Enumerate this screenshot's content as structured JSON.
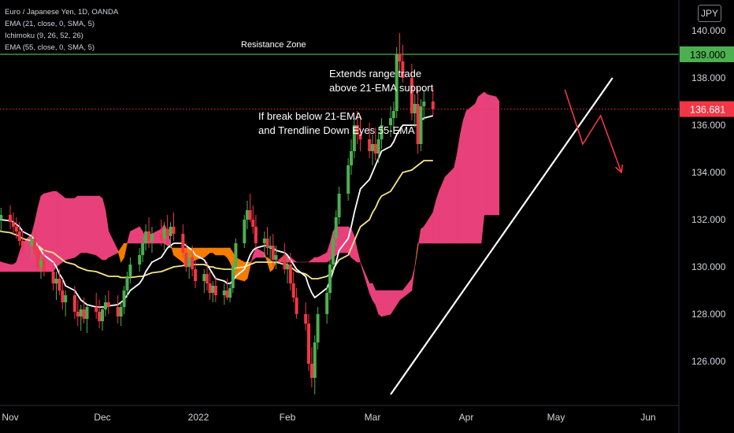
{
  "legend": {
    "title": "Euro / Japanese Yen, 1D, OANDA",
    "ema21": "EMA (21, close, 0, SMA, 5)",
    "ichimoku": "Ichimoku (9, 26, 52, 26)",
    "ema55": "EMA (55, close, 0, SMA, 5)"
  },
  "currency": "JPY",
  "colors": {
    "background": "#000000",
    "up": "#4caf50",
    "down": "#f23645",
    "cloud_bullish": "#e8407a",
    "cloud_bearish": "#f57c00",
    "ema21": "#ffffff",
    "ema55": "#f5e68c",
    "resistance": "#4caf50",
    "projection": "#f23645"
  },
  "chart_data": {
    "type": "candlestick",
    "y_axis": {
      "ticks": [
        "140.000",
        "138.000",
        "136.000",
        "134.000",
        "132.000",
        "130.000",
        "128.000",
        "126.000"
      ],
      "range": [
        124.4,
        141.3
      ]
    },
    "x_axis": {
      "ticks": [
        "Nov",
        "Dec",
        "2022",
        "Feb",
        "Mar",
        "Apr",
        "May",
        "Jun"
      ]
    },
    "resistance": {
      "value": 139.0,
      "label": "139.000",
      "zone_label": "Resistance Zone"
    },
    "last_price": {
      "value": 136.681,
      "label": "136.681"
    },
    "annotations": [
      {
        "text_line1": "Extends range trade",
        "text_line2": "above 21-EMA support"
      },
      {
        "text_line1": "If break below 21-EMA",
        "text_line2": "and Trendline  Down Eyes 55-EMA"
      }
    ],
    "trendline": {
      "from": {
        "date": "2022-03-07",
        "value": 124.6
      },
      "to": {
        "date": "2022-05-20",
        "value": 138.0
      }
    },
    "projection_path": [
      {
        "date": "2022-05-04",
        "value": 137.5
      },
      {
        "date": "2022-05-10",
        "value": 135.2
      },
      {
        "date": "2022-05-16",
        "value": 136.4
      },
      {
        "date": "2022-05-23",
        "value": 134.0
      }
    ],
    "candles_start": "2021-10-27",
    "candles": [
      [
        132.6,
        133.0,
        132.2,
        132.4
      ],
      [
        132.4,
        132.8,
        131.8,
        132.0
      ],
      [
        132.0,
        132.5,
        131.5,
        132.2
      ],
      [
        132.2,
        132.6,
        131.6,
        131.9
      ],
      [
        131.9,
        132.3,
        131.4,
        131.7
      ],
      [
        131.7,
        132.1,
        131.2,
        131.5
      ],
      [
        131.5,
        131.9,
        130.9,
        131.1
      ],
      [
        131.1,
        131.6,
        130.6,
        130.9
      ],
      [
        130.9,
        131.4,
        130.4,
        131.2
      ],
      [
        131.2,
        131.6,
        130.5,
        130.7
      ],
      [
        130.7,
        131.0,
        129.8,
        130.0
      ],
      [
        130.0,
        130.5,
        129.5,
        130.3
      ],
      [
        130.3,
        130.8,
        129.6,
        129.8
      ],
      [
        129.8,
        130.2,
        129.0,
        129.3
      ],
      [
        129.3,
        129.8,
        128.6,
        129.5
      ],
      [
        129.5,
        129.9,
        128.8,
        129.0
      ],
      [
        129.0,
        129.5,
        128.2,
        128.5
      ],
      [
        128.5,
        129.0,
        127.9,
        128.8
      ],
      [
        128.8,
        129.2,
        127.8,
        128.1
      ],
      [
        128.1,
        128.6,
        127.5,
        127.9
      ],
      [
        127.9,
        128.4,
        127.3,
        128.2
      ],
      [
        128.2,
        128.7,
        127.6,
        127.8
      ],
      [
        127.8,
        128.4,
        127.2,
        128.3
      ],
      [
        128.3,
        128.9,
        127.8,
        128.1
      ],
      [
        128.1,
        128.6,
        127.4,
        127.7
      ],
      [
        127.7,
        128.3,
        127.3,
        128.2
      ],
      [
        128.2,
        128.8,
        127.9,
        128.5
      ],
      [
        128.5,
        129.0,
        128.0,
        128.3
      ],
      [
        128.3,
        128.8,
        127.6,
        127.9
      ],
      [
        127.9,
        128.5,
        127.5,
        128.3
      ],
      [
        128.3,
        129.2,
        128.0,
        129.0
      ],
      [
        129.0,
        129.8,
        128.7,
        129.6
      ],
      [
        129.6,
        130.4,
        129.3,
        130.1
      ],
      [
        130.1,
        130.8,
        129.8,
        130.5
      ],
      [
        130.5,
        131.3,
        130.2,
        131.0
      ],
      [
        131.0,
        131.8,
        130.7,
        131.5
      ],
      [
        131.5,
        132.1,
        130.8,
        131.1
      ],
      [
        131.1,
        131.7,
        130.6,
        131.4
      ],
      [
        131.4,
        132.0,
        130.9,
        131.2
      ],
      [
        131.2,
        131.9,
        130.7,
        131.6
      ],
      [
        131.6,
        132.2,
        131.0,
        131.3
      ],
      [
        131.3,
        131.9,
        130.8,
        131.7
      ],
      [
        131.7,
        132.3,
        131.1,
        131.4
      ],
      [
        131.4,
        131.8,
        130.4,
        130.6
      ],
      [
        130.6,
        131.0,
        129.8,
        130.0
      ],
      [
        130.0,
        130.6,
        129.5,
        130.4
      ],
      [
        130.4,
        130.9,
        129.6,
        129.9
      ],
      [
        129.9,
        130.3,
        129.1,
        129.4
      ],
      [
        129.4,
        129.9,
        128.9,
        129.7
      ],
      [
        129.7,
        130.2,
        129.0,
        129.3
      ],
      [
        129.3,
        129.8,
        128.6,
        128.9
      ],
      [
        128.9,
        129.4,
        128.5,
        129.2
      ],
      [
        129.2,
        129.6,
        128.5,
        128.8
      ],
      [
        128.8,
        129.3,
        128.4,
        129.0
      ],
      [
        129.0,
        129.5,
        128.6,
        128.7
      ],
      [
        128.7,
        129.3,
        128.5,
        129.1
      ],
      [
        129.1,
        130.2,
        128.9,
        130.0
      ],
      [
        130.0,
        131.2,
        129.8,
        131.0
      ],
      [
        131.0,
        132.2,
        130.8,
        132.0
      ],
      [
        132.0,
        132.8,
        131.6,
        132.4
      ],
      [
        132.4,
        133.1,
        131.9,
        132.0
      ],
      [
        132.0,
        132.6,
        131.4,
        131.7
      ],
      [
        131.7,
        132.2,
        130.8,
        131.0
      ],
      [
        131.0,
        131.5,
        130.4,
        131.2
      ],
      [
        131.2,
        131.7,
        130.5,
        130.8
      ],
      [
        130.8,
        131.3,
        130.2,
        130.9
      ],
      [
        130.9,
        131.4,
        130.0,
        130.3
      ],
      [
        130.3,
        130.9,
        129.9,
        130.5
      ],
      [
        130.5,
        131.0,
        129.7,
        129.9
      ],
      [
        129.9,
        130.4,
        129.3,
        130.1
      ],
      [
        130.1,
        130.6,
        129.0,
        129.3
      ],
      [
        129.3,
        129.8,
        128.5,
        128.7
      ],
      [
        128.7,
        129.1,
        127.8,
        128.0
      ],
      [
        128.0,
        128.5,
        127.3,
        127.6
      ],
      [
        127.6,
        128.0,
        125.6,
        125.9
      ],
      [
        125.9,
        126.6,
        124.9,
        125.3
      ],
      [
        125.3,
        127.1,
        124.6,
        126.8
      ],
      [
        126.8,
        128.3,
        126.5,
        128.0
      ],
      [
        128.0,
        129.2,
        127.6,
        128.9
      ],
      [
        128.9,
        130.4,
        128.6,
        130.1
      ],
      [
        130.1,
        131.5,
        129.8,
        131.2
      ],
      [
        131.2,
        132.4,
        130.9,
        132.1
      ],
      [
        132.1,
        133.4,
        131.8,
        133.1
      ],
      [
        133.1,
        134.6,
        132.8,
        134.3
      ],
      [
        134.3,
        135.4,
        133.9,
        134.9
      ],
      [
        134.9,
        136.3,
        134.6,
        136.0
      ],
      [
        136.0,
        136.6,
        135.2,
        135.6
      ],
      [
        135.6,
        136.4,
        134.9,
        135.4
      ],
      [
        135.4,
        136.1,
        134.6,
        134.9
      ],
      [
        134.9,
        135.6,
        134.3,
        135.2
      ],
      [
        135.2,
        135.9,
        134.5,
        134.8
      ],
      [
        134.8,
        135.7,
        134.4,
        135.4
      ],
      [
        135.4,
        136.3,
        135.0,
        136.0
      ],
      [
        136.0,
        136.8,
        135.5,
        136.3
      ],
      [
        136.3,
        137.0,
        135.8,
        136.6
      ],
      [
        136.6,
        139.3,
        136.3,
        139.0
      ],
      [
        139.0,
        139.9,
        138.2,
        138.7
      ],
      [
        138.7,
        139.4,
        137.8,
        138.0
      ],
      [
        138.0,
        138.6,
        136.2,
        136.5
      ],
      [
        136.5,
        137.3,
        135.9,
        136.9
      ],
      [
        136.9,
        137.6,
        134.8,
        135.2
      ],
      [
        135.2,
        137.1,
        134.9,
        136.8
      ],
      [
        136.8,
        137.5,
        136.2,
        137.0
      ],
      [
        137.0,
        137.6,
        136.4,
        136.681
      ]
    ],
    "ema21": {
      "start_date": "2021-10-27",
      "values": [
        132.0,
        132.0,
        132.0,
        131.95,
        131.9,
        131.8,
        131.7,
        131.5,
        131.3,
        131.1,
        130.9,
        130.7,
        130.5,
        130.2,
        130.0,
        129.7,
        129.5,
        129.2,
        129.0,
        128.8,
        128.6,
        128.5,
        128.4,
        128.3,
        128.3,
        128.3,
        128.3,
        128.35,
        128.4,
        128.5,
        128.6,
        128.8,
        129.0,
        129.3,
        129.5,
        129.8,
        130.0,
        130.2,
        130.4,
        130.6,
        130.8,
        130.9,
        131.0,
        131.0,
        130.9,
        130.8,
        130.7,
        130.5,
        130.3,
        130.1,
        129.9,
        129.7,
        129.5,
        129.4,
        129.3,
        129.3,
        129.4,
        129.6,
        129.9,
        130.2,
        130.5,
        130.7,
        130.8,
        130.9,
        130.9,
        130.8,
        130.8,
        130.7,
        130.6,
        130.5,
        130.3,
        130.1,
        129.9,
        129.6,
        129.2,
        128.9,
        128.7,
        128.8,
        129.1,
        129.4,
        129.8,
        130.2,
        130.7,
        131.2,
        131.7,
        132.3,
        132.8,
        133.3,
        133.7,
        134.0,
        134.3,
        134.6,
        134.9,
        135.1,
        135.3,
        135.6,
        135.8,
        136.0,
        136.0,
        136.0,
        136.0,
        136.2,
        136.3,
        136.4
      ]
    },
    "ema55": {
      "start_date": "2021-10-27",
      "values": [
        131.6,
        131.55,
        131.5,
        131.45,
        131.4,
        131.35,
        131.3,
        131.2,
        131.1,
        131.0,
        130.9,
        130.8,
        130.7,
        130.6,
        130.5,
        130.4,
        130.3,
        130.2,
        130.1,
        130.0,
        129.95,
        129.9,
        129.85,
        129.8,
        129.75,
        129.7,
        129.65,
        129.6,
        129.6,
        129.55,
        129.55,
        129.55,
        129.55,
        129.6,
        129.6,
        129.65,
        129.7,
        129.75,
        129.8,
        129.85,
        129.9,
        129.95,
        130.0,
        130.05,
        130.1,
        130.1,
        130.1,
        130.1,
        130.1,
        130.05,
        130.0,
        130.0,
        129.95,
        129.9,
        129.9,
        129.9,
        129.9,
        129.95,
        130.0,
        130.05,
        130.1,
        130.15,
        130.2,
        130.2,
        130.2,
        130.2,
        130.2,
        130.2,
        130.1,
        130.1,
        130.0,
        129.9,
        129.8,
        129.7,
        129.6,
        129.5,
        129.5,
        129.5,
        129.6,
        129.7,
        129.9,
        130.1,
        130.3,
        130.5,
        130.8,
        131.1,
        131.4,
        131.7,
        132.0,
        132.3,
        132.5,
        132.8,
        133.0,
        133.2,
        133.4,
        133.6,
        133.8,
        134.0,
        134.1,
        134.2,
        134.3,
        134.4,
        134.5,
        134.5
      ]
    }
  },
  "ichimoku_cloud": {
    "start_date": "2021-10-27",
    "span_a": [
      130.4,
      130.3,
      130.2,
      130.1,
      130.1,
      130.2,
      130.6,
      131.0,
      131.4,
      131.9,
      132.5,
      133.0,
      133.1,
      133.2,
      133.2,
      133.1,
      133.0,
      132.9,
      132.9,
      133.0,
      133.0,
      133.0,
      133.0,
      133.0,
      133.0,
      132.9,
      132.4,
      131.5,
      130.7,
      130.2,
      130.4,
      131.0,
      131.5,
      131.7,
      131.5,
      131.2,
      131.2,
      131.4,
      131.6,
      131.8,
      131.5,
      131.0,
      130.5,
      130.2,
      130.0,
      130.0,
      130.2,
      130.3,
      130.4,
      130.5,
      130.6,
      130.6,
      130.5,
      130.5,
      130.4,
      130.2,
      129.9,
      129.5,
      129.4,
      129.5,
      130.0,
      130.5,
      130.8,
      130.6,
      130.2,
      129.8,
      129.9,
      130.2,
      130.5,
      130.5,
      130.4,
      130.3,
      130.2,
      130.2,
      130.2,
      130.3,
      130.4,
      130.4,
      130.6,
      131.0,
      131.5,
      131.7,
      131.7,
      131.7,
      131.6,
      131.3,
      130.7,
      130.2,
      129.3,
      129.3,
      129.0,
      129.0,
      129.0,
      129.0,
      129.0,
      129.0,
      129.0,
      129.0,
      129.5,
      130.0,
      130.8,
      131.6,
      131.7,
      132.3,
      132.8,
      133.2,
      133.5,
      133.8,
      134.2,
      134.8,
      135.6,
      136.2,
      136.6,
      136.9,
      137.2,
      137.3,
      137.4,
      137.3,
      137.2,
      137.0
    ],
    "span_b": [
      129.9,
      129.8,
      129.8,
      129.8,
      129.8,
      129.8,
      129.8,
      129.8,
      129.8,
      129.8,
      129.8,
      129.8,
      129.8,
      129.8,
      130.0,
      130.1,
      130.2,
      130.3,
      130.4,
      130.5,
      130.6,
      130.6,
      130.6,
      130.5,
      130.4,
      130.3,
      130.3,
      130.4,
      130.6,
      130.8,
      131.0,
      131.0,
      131.0,
      131.0,
      131.0,
      131.0,
      131.0,
      131.0,
      131.0,
      131.0,
      130.9,
      130.8,
      130.8,
      130.8,
      130.8,
      130.8,
      130.8,
      130.8,
      130.8,
      130.8,
      130.8,
      130.8,
      130.8,
      130.8,
      130.8,
      130.8,
      130.6,
      130.4,
      130.2,
      130.2,
      130.2,
      130.3,
      130.4,
      130.4,
      130.4,
      130.3,
      130.2,
      130.2,
      130.2,
      130.2,
      130.2,
      130.2,
      130.2,
      130.2,
      130.2,
      130.2,
      130.2,
      130.2,
      130.2,
      130.3,
      130.4,
      130.5,
      130.6,
      130.6,
      130.4,
      130.3,
      130.2,
      130.2,
      128.9,
      128.6,
      128.4,
      128.0,
      127.9,
      128.0,
      128.2,
      128.4,
      128.6,
      128.7,
      129.0,
      130.0,
      131.0,
      131.0,
      131.0,
      131.0,
      131.0,
      131.0,
      131.0,
      131.0,
      131.0,
      131.0,
      131.0,
      131.0,
      131.0,
      131.0,
      131.0,
      131.0,
      132.2,
      132.2,
      132.2,
      132.2
    ]
  }
}
